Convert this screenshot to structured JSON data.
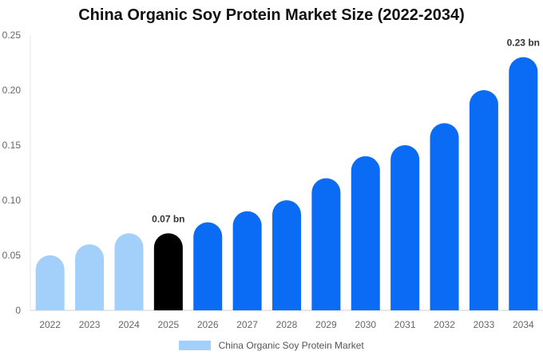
{
  "chart_data": {
    "type": "bar",
    "title": "China Organic Soy Protein Market Size (2022-2034)",
    "xlabel": "",
    "ylabel": "",
    "categories": [
      "2022",
      "2023",
      "2024",
      "2025",
      "2026",
      "2027",
      "2028",
      "2029",
      "2030",
      "2031",
      "2032",
      "2033",
      "2034"
    ],
    "series": [
      {
        "name": "China Organic Soy Protein Market",
        "values": [
          0.05,
          0.06,
          0.07,
          0.07,
          0.08,
          0.09,
          0.1,
          0.12,
          0.14,
          0.15,
          0.17,
          0.2,
          0.23
        ]
      }
    ],
    "ylim": [
      0,
      0.25
    ],
    "yticks": [
      "0",
      "0.05",
      "0.10",
      "0.15",
      "0.20",
      "0.25"
    ],
    "data_labels": [
      {
        "category": "2025",
        "text": "0.07 bn"
      },
      {
        "category": "2034",
        "text": "0.23 bn"
      }
    ],
    "colors": {
      "historic": "#a3cffb",
      "current": "#000000",
      "forecast": "#0a6cf5",
      "legend": "#a3cffb"
    },
    "highlight_category": "2025",
    "grid": false,
    "legend_position": "bottom"
  }
}
